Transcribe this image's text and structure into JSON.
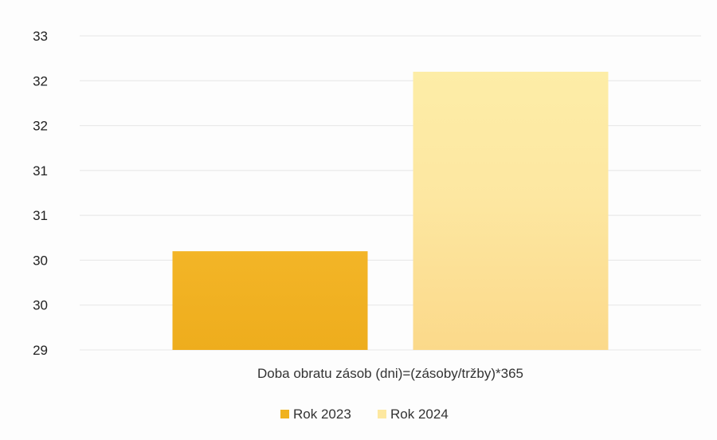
{
  "chart_data": {
    "type": "bar",
    "categories": [
      "Doba obratu zásob (dni)=(zásoby/tržby)*365"
    ],
    "series": [
      {
        "name": "Rok 2023",
        "values": [
          30.1
        ],
        "color": "#f0b21e"
      },
      {
        "name": "Rok 2024",
        "values": [
          32.1
        ],
        "color": "#fde8a0"
      }
    ],
    "y_ticks": [
      "33",
      "32",
      "32",
      "31",
      "31",
      "30",
      "30",
      "29"
    ],
    "ylim": [
      29,
      32.5
    ],
    "grid": true,
    "legend": "bottom-center",
    "title": "",
    "xlabel": "",
    "ylabel": ""
  }
}
